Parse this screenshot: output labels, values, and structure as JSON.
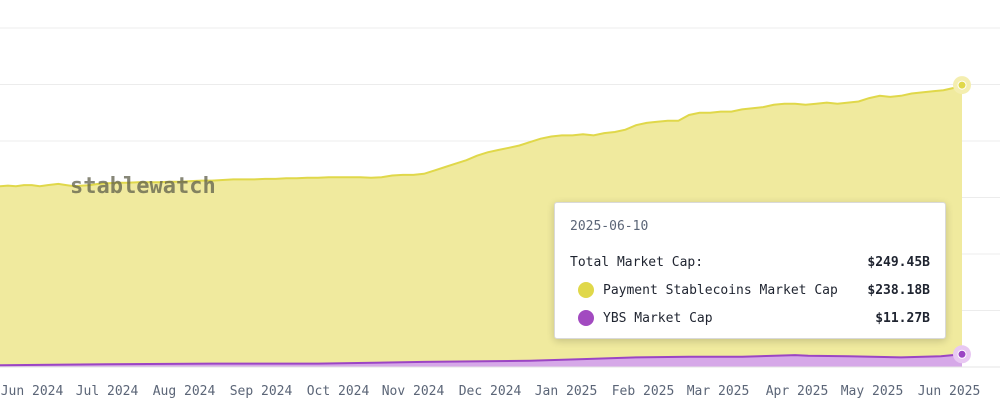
{
  "chart_data": {
    "type": "area",
    "x_labels": [
      "Jun 2024",
      "Jul 2024",
      "Aug 2024",
      "Sep 2024",
      "Oct 2024",
      "Nov 2024",
      "Dec 2024",
      "Jan 2025",
      "Feb 2025",
      "Mar 2025",
      "Apr 2025",
      "May 2025",
      "Jun 2025"
    ],
    "ylim": [
      0,
      300
    ],
    "grid": true,
    "series": [
      {
        "name": "Payment Stablecoins Market Cap",
        "color": "#e0d84a",
        "fill": "#f0ea9e",
        "values": [
          [
            0,
            160
          ],
          [
            3,
            160.5
          ],
          [
            6,
            160
          ],
          [
            9,
            161
          ],
          [
            12,
            161
          ],
          [
            15,
            160
          ],
          [
            18,
            161
          ],
          [
            22,
            162
          ],
          [
            25,
            161
          ],
          [
            28,
            160
          ],
          [
            31,
            160.5
          ],
          [
            34,
            161
          ],
          [
            37,
            162
          ],
          [
            40,
            162.5
          ],
          [
            44,
            163
          ],
          [
            48,
            163
          ],
          [
            52,
            163.5
          ],
          [
            56,
            163.5
          ],
          [
            60,
            163.5
          ],
          [
            64,
            164
          ],
          [
            68,
            164
          ],
          [
            72,
            164.5
          ],
          [
            76,
            165
          ],
          [
            80,
            165
          ],
          [
            84,
            165.5
          ],
          [
            88,
            166
          ],
          [
            92,
            166
          ],
          [
            96,
            166
          ],
          [
            100,
            166.5
          ],
          [
            104,
            166.5
          ],
          [
            108,
            167
          ],
          [
            112,
            167
          ],
          [
            116,
            167.5
          ],
          [
            120,
            167.5
          ],
          [
            124,
            168
          ],
          [
            128,
            168
          ],
          [
            132,
            168
          ],
          [
            136,
            168
          ],
          [
            140,
            167.5
          ],
          [
            144,
            168
          ],
          [
            148,
            169.5
          ],
          [
            152,
            170
          ],
          [
            156,
            170
          ],
          [
            160,
            171
          ],
          [
            164,
            174
          ],
          [
            168,
            177
          ],
          [
            172,
            180
          ],
          [
            176,
            183
          ],
          [
            180,
            187
          ],
          [
            184,
            190
          ],
          [
            188,
            192
          ],
          [
            192,
            194
          ],
          [
            196,
            196
          ],
          [
            200,
            199
          ],
          [
            204,
            202
          ],
          [
            208,
            204
          ],
          [
            212,
            205
          ],
          [
            216,
            205
          ],
          [
            220,
            206
          ],
          [
            224,
            205
          ],
          [
            228,
            207
          ],
          [
            232,
            208
          ],
          [
            236,
            210
          ],
          [
            240,
            214
          ],
          [
            244,
            216
          ],
          [
            248,
            217
          ],
          [
            252,
            218
          ],
          [
            256,
            218
          ],
          [
            260,
            223
          ],
          [
            264,
            225
          ],
          [
            268,
            225
          ],
          [
            272,
            226
          ],
          [
            276,
            226
          ],
          [
            280,
            228
          ],
          [
            284,
            229
          ],
          [
            288,
            230
          ],
          [
            292,
            232
          ],
          [
            296,
            233
          ],
          [
            300,
            233
          ],
          [
            304,
            232
          ],
          [
            308,
            233
          ],
          [
            312,
            234
          ],
          [
            316,
            233
          ],
          [
            320,
            234
          ],
          [
            324,
            235
          ],
          [
            328,
            238
          ],
          [
            332,
            240
          ],
          [
            336,
            239
          ],
          [
            340,
            240
          ],
          [
            344,
            242
          ],
          [
            348,
            243
          ],
          [
            352,
            244
          ],
          [
            356,
            245
          ],
          [
            360,
            247
          ],
          [
            363,
            249.45
          ]
        ]
      },
      {
        "name": "YBS Market Cap",
        "color": "#9b45c4",
        "fill": "#d6a8e8",
        "values": [
          [
            0,
            1.5
          ],
          [
            40,
            2.5
          ],
          [
            80,
            3.0
          ],
          [
            120,
            3.0
          ],
          [
            160,
            4.5
          ],
          [
            200,
            5.5
          ],
          [
            220,
            7.0
          ],
          [
            240,
            8.5
          ],
          [
            260,
            9.0
          ],
          [
            280,
            9.0
          ],
          [
            300,
            10.5
          ],
          [
            305,
            10.0
          ],
          [
            320,
            9.5
          ],
          [
            340,
            8.5
          ],
          [
            355,
            9.5
          ],
          [
            363,
            11.27
          ]
        ]
      }
    ],
    "tooltip": {
      "date": "2025-06-10",
      "total_label": "Total Market Cap:",
      "total_value": "$249.45B",
      "items": [
        {
          "label": "Payment Stablecoins Market Cap",
          "value": "$238.18B",
          "color": "#e0d84a"
        },
        {
          "label": "YBS Market Cap",
          "value": "$11.27B",
          "color": "#9b45c4"
        }
      ]
    }
  },
  "watermark": "stablewatch"
}
